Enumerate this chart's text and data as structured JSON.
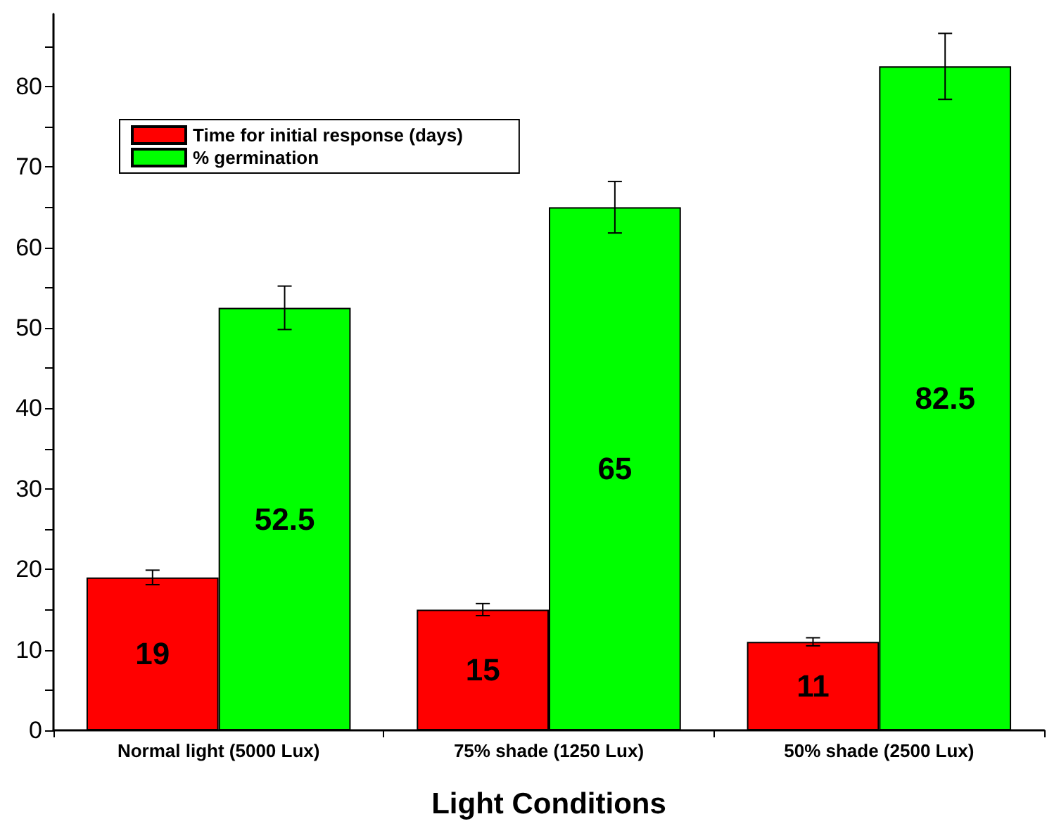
{
  "chart_data": {
    "type": "bar",
    "xlabel": "Light Conditions",
    "categories": [
      "Normal light (5000 Lux)",
      "75% shade (1250 Lux)",
      "50% shade (2500 Lux)"
    ],
    "series": [
      {
        "name": "Time for initial response (days)",
        "color": "#ff0000",
        "values": [
          19,
          15,
          11
        ],
        "errors": [
          0.9,
          0.75,
          0.5
        ]
      },
      {
        "name": "% germination",
        "color": "#00ff00",
        "values": [
          52.5,
          65,
          82.5
        ],
        "errors": [
          2.7,
          3.2,
          4.1
        ]
      }
    ],
    "ylim": [
      0,
      89
    ],
    "yticks": [
      0,
      {
        "value": 5,
        "label": null
      },
      10,
      {
        "value": 15,
        "label": null
      },
      20,
      {
        "value": 25,
        "label": null
      },
      30,
      {
        "value": 35,
        "label": null
      },
      40,
      {
        "value": 45,
        "label": null
      },
      50,
      {
        "value": 55,
        "label": null
      },
      60,
      {
        "value": 65,
        "label": null
      },
      70,
      {
        "value": 75,
        "label": null
      },
      80,
      {
        "value": 85,
        "label": null
      }
    ],
    "data_labels": true,
    "legend": "top left",
    "grid": false
  }
}
